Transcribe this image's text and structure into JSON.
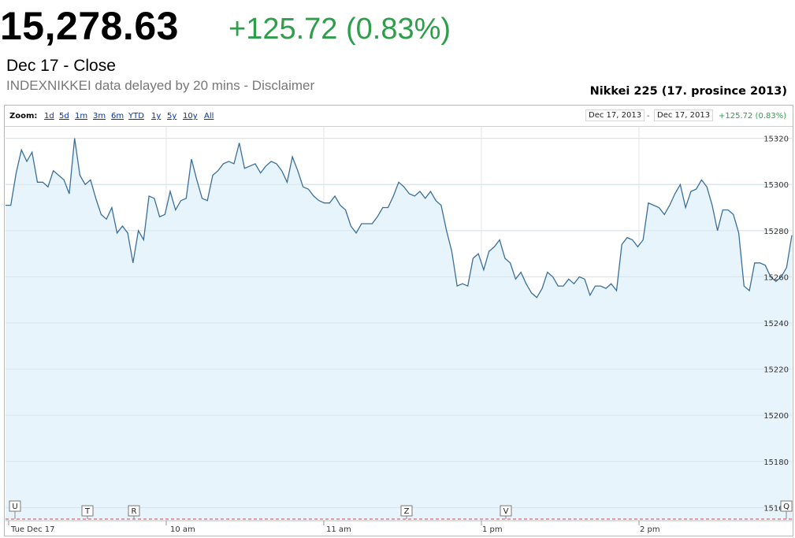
{
  "header": {
    "price": "15,278.63",
    "change": "+125.72 (0.83%)",
    "subline": "Dec 17 - Close",
    "delay_note": "INDEXNIKKEI data delayed by 20 mins - Disclaimer",
    "caption": "Nikkei 225 (17. prosince 2013)"
  },
  "toolbar": {
    "zoom_label": "Zoom:",
    "zoom_options": [
      "1d",
      "5d",
      "1m",
      "3m",
      "6m",
      "YTD",
      "1y",
      "5y",
      "10y",
      "All"
    ],
    "range_start": "Dec 17, 2013",
    "range_sep": "-",
    "range_end": "Dec 17, 2013",
    "range_change": "+125.72 (0.83%)"
  },
  "colors": {
    "line": "#3a6f9a",
    "fill": "#e8f4fb",
    "change_green": "#2e9e4a"
  },
  "chart_data": {
    "type": "area",
    "x_tick_labels": [
      "Tue Dec 17",
      "10 am",
      "11 am",
      "1 pm",
      "2 pm"
    ],
    "y_ticks": [
      15160,
      15180,
      15200,
      15220,
      15240,
      15260,
      15280,
      15300,
      15320
    ],
    "ylim": [
      15155,
      15325
    ],
    "grid": true,
    "event_flags": [
      "U",
      "T",
      "R",
      "Z",
      "V",
      "Q"
    ],
    "series": [
      {
        "values": [
          15291,
          15291,
          15305,
          15315,
          15310,
          15314,
          15301,
          15301,
          15299,
          15306,
          15304,
          15302,
          15296,
          15320,
          15304,
          15300,
          15302,
          15294,
          15287,
          15285,
          15290,
          15279,
          15282,
          15279,
          15266,
          15280,
          15276,
          15295,
          15294,
          15286,
          15287,
          15297,
          15289,
          15293,
          15294,
          15311,
          15302,
          15294,
          15293,
          15304,
          15306,
          15309,
          15310,
          15309,
          15318,
          15307,
          15308,
          15309,
          15305,
          15308,
          15310,
          15309,
          15306,
          15301,
          15312,
          15306,
          15299,
          15298,
          15295,
          15293,
          15292,
          15292,
          15295,
          15291,
          15289,
          15282,
          15279,
          15283,
          15283,
          15283,
          15286,
          15290,
          15290,
          15295,
          15301,
          15299,
          15296,
          15295,
          15297,
          15294,
          15297,
          15293,
          15291,
          15280,
          15271,
          15256,
          15257,
          15256,
          15268,
          15270,
          15263,
          15271,
          15273,
          15276,
          15268,
          15266,
          15259,
          15262,
          15257,
          15253,
          15251,
          15255,
          15262,
          15260,
          15256,
          15256,
          15259,
          15257,
          15260,
          15259,
          15252,
          15256,
          15256,
          15255,
          15257,
          15254,
          15274,
          15277,
          15276,
          15273,
          15276,
          15292,
          15291,
          15290,
          15287,
          15291,
          15296,
          15300,
          15290,
          15297,
          15298,
          15302,
          15299,
          15291,
          15280,
          15289,
          15289,
          15287,
          15279,
          15256,
          15254,
          15266,
          15266,
          15265,
          15260,
          15258,
          15260,
          15264,
          15278
        ]
      }
    ]
  }
}
